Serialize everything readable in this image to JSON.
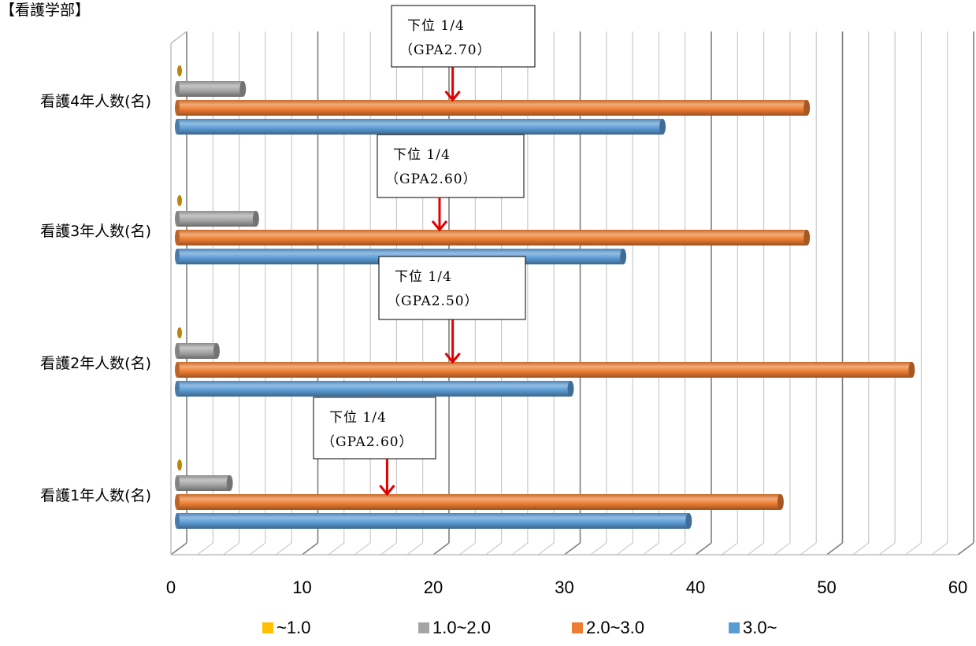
{
  "chart_title": "【看護学部】",
  "colors": {
    "s0": "#FFC000",
    "s1": "#A5A5A5",
    "s2": "#ED7D31",
    "s3": "#5B9BD5",
    "arrow": "#E00000",
    "grid": "#BFBFBF",
    "major_grid": "#7F7F7F"
  },
  "chart_data": {
    "type": "bar",
    "orientation": "horizontal",
    "style": "3d-cylinder",
    "title": "【看護学部】",
    "categories": [
      "看護4年人数(名)",
      "看護3年人数(名)",
      "看護2年人数(名)",
      "看護1年人数(名)"
    ],
    "series": [
      {
        "name": "~1.0",
        "values": [
          0,
          0,
          0,
          0
        ]
      },
      {
        "name": "1.0~2.0",
        "values": [
          5,
          6,
          3,
          4
        ]
      },
      {
        "name": "2.0~3.0",
        "values": [
          48,
          48,
          56,
          46
        ]
      },
      {
        "name": "3.0~",
        "values": [
          37,
          34,
          30,
          39
        ]
      }
    ],
    "xlim": [
      0,
      60
    ],
    "x_ticks": [
      "0",
      "10",
      "20",
      "30",
      "40",
      "50",
      "60"
    ],
    "grid": true,
    "legend_position": "bottom",
    "annotations": [
      {
        "category": "看護4年人数(名)",
        "line1": "下位 1/4",
        "line2": "（GPA2.70）",
        "x": 21
      },
      {
        "category": "看護3年人数(名)",
        "line1": "下位 1/4",
        "line2": "（GPA2.60）",
        "x": 20
      },
      {
        "category": "看護2年人数(名)",
        "line1": "下位 1/4",
        "line2": "（GPA2.50）",
        "x": 21
      },
      {
        "category": "看護1年人数(名)",
        "line1": "下位 1/4",
        "line2": "（GPA2.60）",
        "x": 16
      }
    ]
  }
}
